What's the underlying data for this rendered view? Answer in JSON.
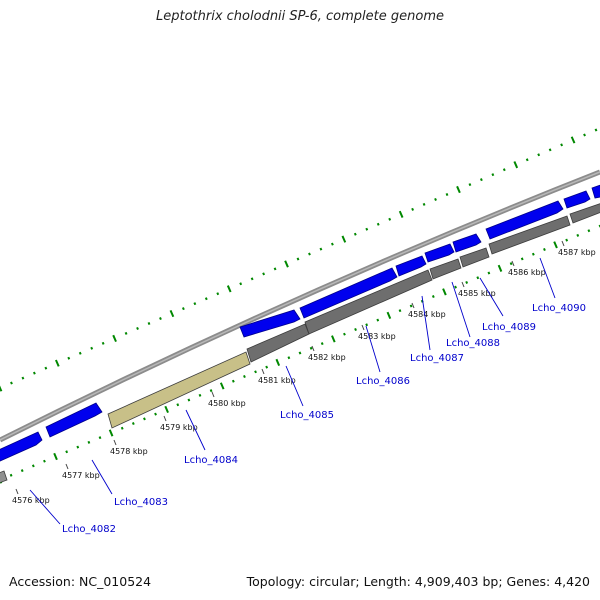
{
  "title": "Leptothrix cholodnii SP-6, complete genome",
  "footer": {
    "accession": "Accession: NC_010524",
    "summary": "Topology: circular; Length: 4,909,403 bp; Genes: 4,420"
  },
  "kbp_labels": [
    "4576 kbp",
    "4577 kbp",
    "4578 kbp",
    "4579 kbp",
    "4580 kbp",
    "4581 kbp",
    "4582 kbp",
    "4583 kbp",
    "4584 kbp",
    "4585 kbp",
    "4586 kbp",
    "4587 kbp"
  ],
  "gene_labels": [
    "Lcho_4082",
    "Lcho_4083",
    "Lcho_4084",
    "Lcho_4085",
    "Lcho_4086",
    "Lcho_4087",
    "Lcho_4088",
    "Lcho_4089",
    "Lcho_4090"
  ],
  "colors": {
    "cds": "#0000ee",
    "gene": "#6e6e6e",
    "highlight": "#c8c088",
    "backbone": "#909090",
    "ticks": "#008800",
    "label_blue": "#0000cc"
  }
}
